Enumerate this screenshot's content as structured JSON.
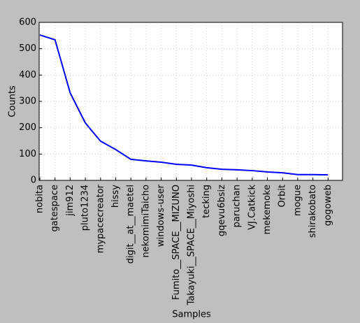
{
  "chart_data": {
    "type": "line",
    "xlabel": "Samples",
    "ylabel": "Counts",
    "categories": [
      "nobita",
      "gatespace",
      "jim912",
      "pluto1234",
      "mypacecreator",
      "hissy",
      "digit__at__maetel",
      "nekomimiTaicho",
      "windows-user",
      "Fumito__SPACE__MIZUNO",
      "Takayuki__SPACE__Miyoshi",
      "tecking",
      "gqevu6bsiz",
      "paruchan",
      "VJ.Catkick",
      "mekemoke",
      "Orbit",
      "mogue",
      "shirakobato",
      "gogoweb"
    ],
    "values": [
      552,
      534,
      332,
      218,
      149,
      117,
      80,
      74,
      69,
      61,
      58,
      48,
      42,
      40,
      37,
      32,
      29,
      22,
      22,
      21
    ],
    "color": "#0000ff",
    "ylim": [
      0,
      600
    ],
    "yticks": [
      0,
      100,
      200,
      300,
      400,
      500,
      600
    ],
    "grid": true
  }
}
